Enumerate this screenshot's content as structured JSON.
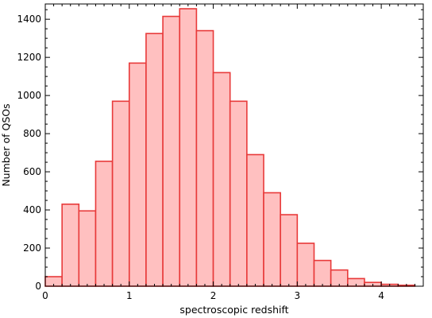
{
  "chart_data": {
    "type": "bar",
    "subtype": "histogram",
    "title": "",
    "xlabel": "spectroscopic redshift",
    "ylabel": "Number of QSOs",
    "xlim": [
      0,
      4.5
    ],
    "ylim": [
      0,
      1480
    ],
    "grid": false,
    "x_ticks": [
      0,
      1,
      2,
      3,
      4
    ],
    "x_tick_labels": [
      "0",
      "1",
      "2",
      "3",
      "4"
    ],
    "y_ticks": [
      0,
      200,
      400,
      600,
      800,
      1000,
      1200,
      1400
    ],
    "y_tick_labels": [
      "0",
      "200",
      "400",
      "600",
      "800",
      "1000",
      "1200",
      "1400"
    ],
    "bin_width": 0.2,
    "bin_edges_start": [
      0,
      0.2,
      0.4,
      0.6,
      0.8,
      1.0,
      1.2,
      1.4,
      1.6,
      1.8,
      2.0,
      2.2,
      2.4,
      2.6,
      2.8,
      3.0,
      3.2,
      3.4,
      3.6,
      3.8,
      4.0,
      4.2
    ],
    "values": [
      50,
      430,
      395,
      655,
      970,
      1170,
      1325,
      1415,
      1455,
      1340,
      1120,
      970,
      690,
      490,
      375,
      225,
      135,
      85,
      40,
      20,
      10,
      5
    ],
    "colors": {
      "fill": "#ffc0c0",
      "edge": "#e83a3a",
      "axis": "#000000"
    }
  }
}
